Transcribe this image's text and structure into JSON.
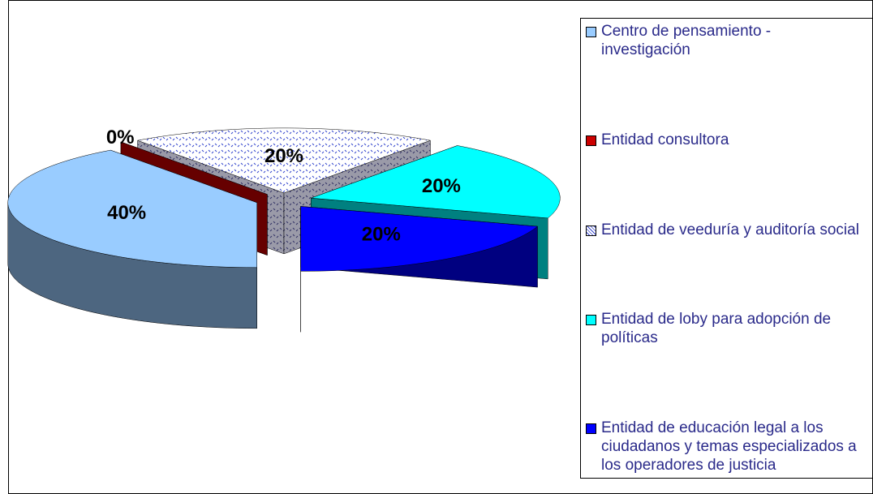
{
  "chart_data": {
    "type": "pie3d",
    "categories": [
      "Centro de pensamiento - investigación",
      "Entidad consultora",
      "Entidad de veeduría y auditoría social",
      "Entidad de loby para adopción de políticas",
      "Entidad de educación legal a los ciudadanos y temas especializados a los operadores de justicia"
    ],
    "values": [
      40,
      0,
      20,
      20,
      20
    ],
    "value_labels": [
      "40%",
      "0%",
      "20%",
      "20%",
      "20%"
    ],
    "colors": [
      "#99ccff",
      "#cc0000",
      "#ffffff",
      "#00ffff",
      "#0000ff"
    ],
    "patterns": [
      null,
      null,
      "dots",
      null,
      null
    ],
    "legend": "right"
  }
}
